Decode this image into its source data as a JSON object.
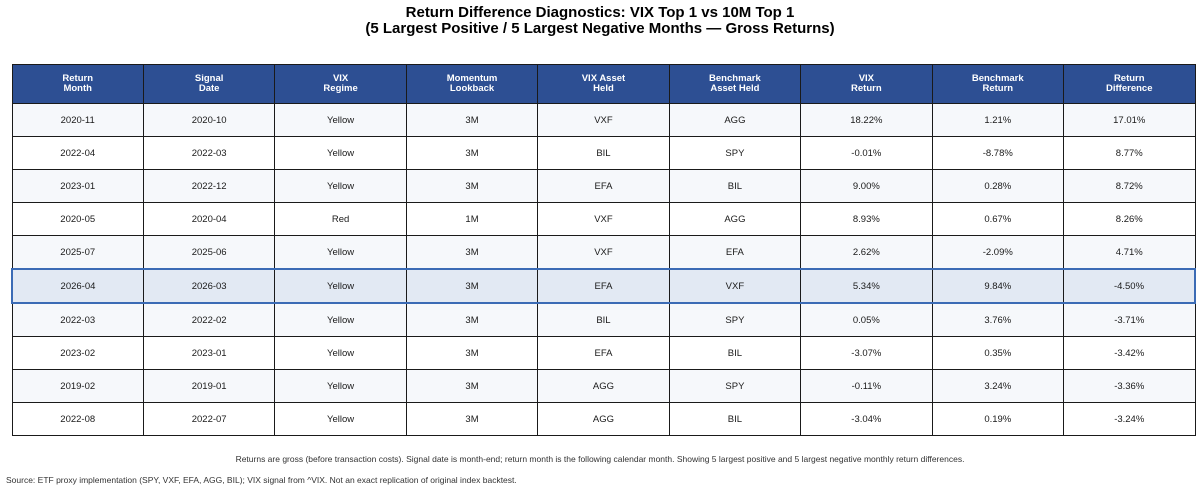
{
  "title_line1": "Return Difference Diagnostics: VIX Top 1 vs 10M Top 1",
  "title_line2": "(5 Largest Positive / 5 Largest Negative Months — Gross Returns)",
  "colors": {
    "header_bg": "#2d4f93",
    "header_text": "#ffffff",
    "separator_row_bg": "#e2e9f3",
    "separator_border": "#3b6bb5"
  },
  "columns": [
    {
      "line1": "Return",
      "line2": "Month"
    },
    {
      "line1": "Signal",
      "line2": "Date"
    },
    {
      "line1": "VIX",
      "line2": "Regime"
    },
    {
      "line1": "Momentum",
      "line2": "Lookback"
    },
    {
      "line1": "VIX Asset",
      "line2": "Held"
    },
    {
      "line1": "Benchmark",
      "line2": "Asset Held"
    },
    {
      "line1": "VIX",
      "line2": "Return"
    },
    {
      "line1": "Benchmark",
      "line2": "Return"
    },
    {
      "line1": "Return",
      "line2": "Difference"
    }
  ],
  "rows": [
    [
      "2020-11",
      "2020-10",
      "Yellow",
      "3M",
      "VXF",
      "AGG",
      "18.22%",
      "1.21%",
      "17.01%"
    ],
    [
      "2022-04",
      "2022-03",
      "Yellow",
      "3M",
      "BIL",
      "SPY",
      "-0.01%",
      "-8.78%",
      "8.77%"
    ],
    [
      "2023-01",
      "2022-12",
      "Yellow",
      "3M",
      "EFA",
      "BIL",
      "9.00%",
      "0.28%",
      "8.72%"
    ],
    [
      "2020-05",
      "2020-04",
      "Red",
      "1M",
      "VXF",
      "AGG",
      "8.93%",
      "0.67%",
      "8.26%"
    ],
    [
      "2025-07",
      "2025-06",
      "Yellow",
      "3M",
      "VXF",
      "EFA",
      "2.62%",
      "-2.09%",
      "4.71%"
    ],
    [
      "2026-04",
      "2026-03",
      "Yellow",
      "3M",
      "EFA",
      "VXF",
      "5.34%",
      "9.84%",
      "-4.50%"
    ],
    [
      "2022-03",
      "2022-02",
      "Yellow",
      "3M",
      "BIL",
      "SPY",
      "0.05%",
      "3.76%",
      "-3.71%"
    ],
    [
      "2023-02",
      "2023-01",
      "Yellow",
      "3M",
      "EFA",
      "BIL",
      "-3.07%",
      "0.35%",
      "-3.42%"
    ],
    [
      "2019-02",
      "2019-01",
      "Yellow",
      "3M",
      "AGG",
      "SPY",
      "-0.11%",
      "3.24%",
      "-3.36%"
    ],
    [
      "2022-08",
      "2022-07",
      "Yellow",
      "3M",
      "AGG",
      "BIL",
      "-3.04%",
      "0.19%",
      "-3.24%"
    ]
  ],
  "note": "Returns are gross (before transaction costs). Signal date is month-end; return month is the following calendar month. Showing 5 largest positive and 5 largest negative monthly return differences.",
  "source": "Source: ETF proxy implementation (SPY, VXF, EFA, AGG, BIL); VIX signal from ^VIX. Not an exact replication of original index backtest."
}
